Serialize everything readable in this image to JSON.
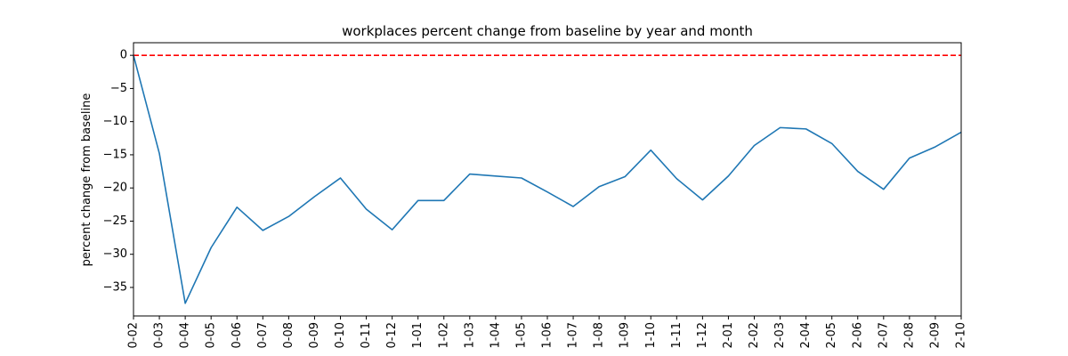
{
  "chart_data": {
    "type": "line",
    "title": "workplaces percent change from baseline by year and month",
    "xlabel": "",
    "ylabel": "percent change from baseline",
    "categories": [
      "0-02",
      "0-03",
      "0-04",
      "0-05",
      "0-06",
      "0-07",
      "0-08",
      "0-09",
      "0-10",
      "0-11",
      "0-12",
      "1-01",
      "1-02",
      "1-03",
      "1-04",
      "1-05",
      "1-06",
      "1-07",
      "1-08",
      "1-09",
      "1-10",
      "1-11",
      "1-12",
      "2-01",
      "2-02",
      "2-03",
      "2-04",
      "2-05",
      "2-06",
      "2-07",
      "2-08",
      "2-09",
      "2-10"
    ],
    "series": [
      {
        "color": "#1f77b4",
        "values": [
          0,
          -14.8,
          -37.4,
          -29.0,
          -22.9,
          -26.4,
          -24.3,
          -21.3,
          -18.5,
          -23.2,
          -26.3,
          -21.9,
          -21.9,
          -17.9,
          -18.2,
          -18.5,
          -20.6,
          -22.8,
          -19.8,
          -18.3,
          -14.3,
          -18.6,
          -21.8,
          -18.2,
          -13.6,
          -10.9,
          -11.1,
          -13.3,
          -17.5,
          -20.2,
          -15.5,
          -13.8,
          -11.6
        ]
      }
    ],
    "reference_line": {
      "y": 0,
      "color": "#ff0000",
      "style": "dashed"
    },
    "ylim": [
      -39.3,
      1.9
    ],
    "yticks": [
      0,
      -5,
      -10,
      -15,
      -20,
      -25,
      -30,
      -35
    ],
    "ytick_labels": [
      "0",
      "−5",
      "−10",
      "−15",
      "−20",
      "−25",
      "−30",
      "−35"
    ],
    "grid": false,
    "legend": "none"
  }
}
